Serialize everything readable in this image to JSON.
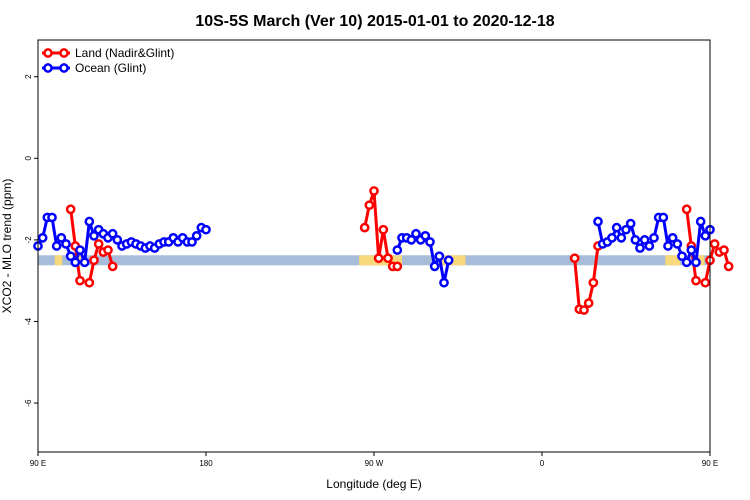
{
  "chart_data": {
    "type": "line",
    "title": "10S-5S March (Ver 10)   2015-01-01 to 2020-12-18",
    "xlabel": "Longitude (deg E)",
    "ylabel": "XCO2 - MLO trend (ppm)",
    "x_axis_range": [
      90,
      450
    ],
    "ylim": [
      -7.2,
      2.9
    ],
    "x_ticks": [
      {
        "value": 90,
        "label": "90 E"
      },
      {
        "value": 180,
        "label": "180"
      },
      {
        "value": 270,
        "label": "90 W"
      },
      {
        "value": 360,
        "label": "0"
      },
      {
        "value": 450,
        "label": "90 E"
      },
      {
        "value": 540,
        "label": "180"
      }
    ],
    "y_ticks": [
      {
        "value": 2,
        "label": "2"
      },
      {
        "value": 0,
        "label": "0"
      },
      {
        "value": -2,
        "label": "-2"
      },
      {
        "value": -4,
        "label": "-4"
      },
      {
        "value": -6,
        "label": "-6"
      }
    ],
    "grid": false,
    "legend_position": "top-left",
    "colors": {
      "land": "#ff0000",
      "ocean": "#0000ff",
      "land_mask": "#f7d87a",
      "ocean_mask": "#a6bcd9"
    },
    "series": [
      {
        "name": "Land (Nadir&Glint)",
        "color": "#ff0000",
        "segments": [
          [
            [
              107.5,
              -1.25
            ],
            [
              110,
              -2.15
            ],
            [
              112.5,
              -3.0
            ]
          ],
          [
            [
              117.5,
              -3.05
            ],
            [
              120,
              -2.5
            ],
            [
              122.5,
              -2.1
            ],
            [
              125,
              -2.3
            ],
            [
              127.5,
              -2.25
            ],
            [
              130,
              -2.65
            ]
          ],
          [
            [
              265,
              -1.7
            ],
            [
              267.5,
              -1.15
            ],
            [
              270,
              -0.8
            ],
            [
              272.5,
              -2.45
            ],
            [
              275,
              -1.75
            ],
            [
              277.5,
              -2.45
            ],
            [
              280,
              -2.65
            ],
            [
              282.5,
              -2.65
            ]
          ],
          [
            [
              377.5,
              -2.45
            ],
            [
              380,
              -3.7
            ],
            [
              382.5,
              -3.72
            ],
            [
              385,
              -3.55
            ],
            [
              387.5,
              -3.05
            ],
            [
              390,
              -2.15
            ]
          ],
          [
            [
              437.5,
              -1.25
            ],
            [
              440,
              -2.15
            ],
            [
              442.5,
              -3.0
            ]
          ],
          [
            [
              447.5,
              -3.05
            ],
            [
              450,
              -2.5
            ],
            [
              452.5,
              -2.1
            ],
            [
              455,
              -2.3
            ],
            [
              457.5,
              -2.25
            ],
            [
              460,
              -2.65
            ]
          ]
        ]
      },
      {
        "name": "Ocean (Glint)",
        "color": "#0000ff",
        "segments": [
          [
            [
              90,
              -2.15
            ],
            [
              92.5,
              -1.95
            ],
            [
              95,
              -1.45
            ],
            [
              97.5,
              -1.45
            ],
            [
              100,
              -2.15
            ],
            [
              102.5,
              -1.95
            ],
            [
              105,
              -2.1
            ],
            [
              107.5,
              -2.4
            ],
            [
              110,
              -2.55
            ],
            [
              112.5,
              -2.25
            ],
            [
              115,
              -2.55
            ],
            [
              117.5,
              -1.55
            ],
            [
              120,
              -1.9
            ],
            [
              122.5,
              -1.75
            ],
            [
              125,
              -1.85
            ],
            [
              127.5,
              -1.95
            ],
            [
              130,
              -1.85
            ],
            [
              132.5,
              -2.0
            ],
            [
              135,
              -2.15
            ],
            [
              137.5,
              -2.1
            ],
            [
              140,
              -2.05
            ],
            [
              142.5,
              -2.1
            ],
            [
              145,
              -2.15
            ],
            [
              147.5,
              -2.2
            ],
            [
              150,
              -2.15
            ],
            [
              152.5,
              -2.2
            ],
            [
              155,
              -2.1
            ],
            [
              157.5,
              -2.05
            ],
            [
              160,
              -2.05
            ],
            [
              162.5,
              -1.95
            ],
            [
              165,
              -2.05
            ],
            [
              167.5,
              -1.95
            ],
            [
              170,
              -2.05
            ],
            [
              172.5,
              -2.05
            ],
            [
              175,
              -1.9
            ],
            [
              177.5,
              -1.7
            ],
            [
              180,
              -1.75
            ]
          ],
          [
            [
              282.5,
              -2.25
            ],
            [
              285,
              -1.95
            ],
            [
              287.5,
              -1.95
            ],
            [
              290,
              -2.0
            ],
            [
              292.5,
              -1.85
            ],
            [
              295,
              -2.0
            ],
            [
              297.5,
              -1.9
            ],
            [
              300,
              -2.05
            ],
            [
              302.5,
              -2.65
            ],
            [
              305,
              -2.4
            ],
            [
              307.5,
              -3.05
            ],
            [
              310,
              -2.5
            ]
          ],
          [
            [
              390,
              -1.55
            ],
            [
              392.5,
              -2.1
            ],
            [
              395,
              -2.05
            ],
            [
              397.5,
              -1.95
            ],
            [
              400,
              -1.7
            ],
            [
              402.5,
              -1.95
            ],
            [
              405,
              -1.75
            ],
            [
              407.5,
              -1.6
            ],
            [
              410,
              -2.0
            ],
            [
              412.5,
              -2.2
            ],
            [
              415,
              -2.0
            ],
            [
              417.5,
              -2.15
            ],
            [
              420,
              -1.95
            ],
            [
              422.5,
              -1.45
            ],
            [
              425,
              -1.45
            ],
            [
              427.5,
              -2.15
            ],
            [
              430,
              -1.95
            ],
            [
              432.5,
              -2.1
            ],
            [
              435,
              -2.4
            ],
            [
              437.5,
              -2.55
            ],
            [
              440,
              -2.25
            ],
            [
              442.5,
              -2.55
            ],
            [
              445,
              -1.55
            ],
            [
              447.5,
              -1.9
            ],
            [
              450,
              -1.75
            ]
          ]
        ]
      }
    ],
    "land_sea_mask": {
      "y": -2.5,
      "land_ranges": [
        [
          99,
          103
        ],
        [
          111,
          116
        ],
        [
          262,
          285
        ],
        [
          305,
          319
        ],
        [
          426,
          434
        ],
        [
          442,
          447
        ]
      ]
    },
    "legend": [
      {
        "label": "Land (Nadir&Glint)",
        "color": "#ff0000"
      },
      {
        "label": "Ocean (Glint)",
        "color": "#0000ff"
      }
    ]
  }
}
